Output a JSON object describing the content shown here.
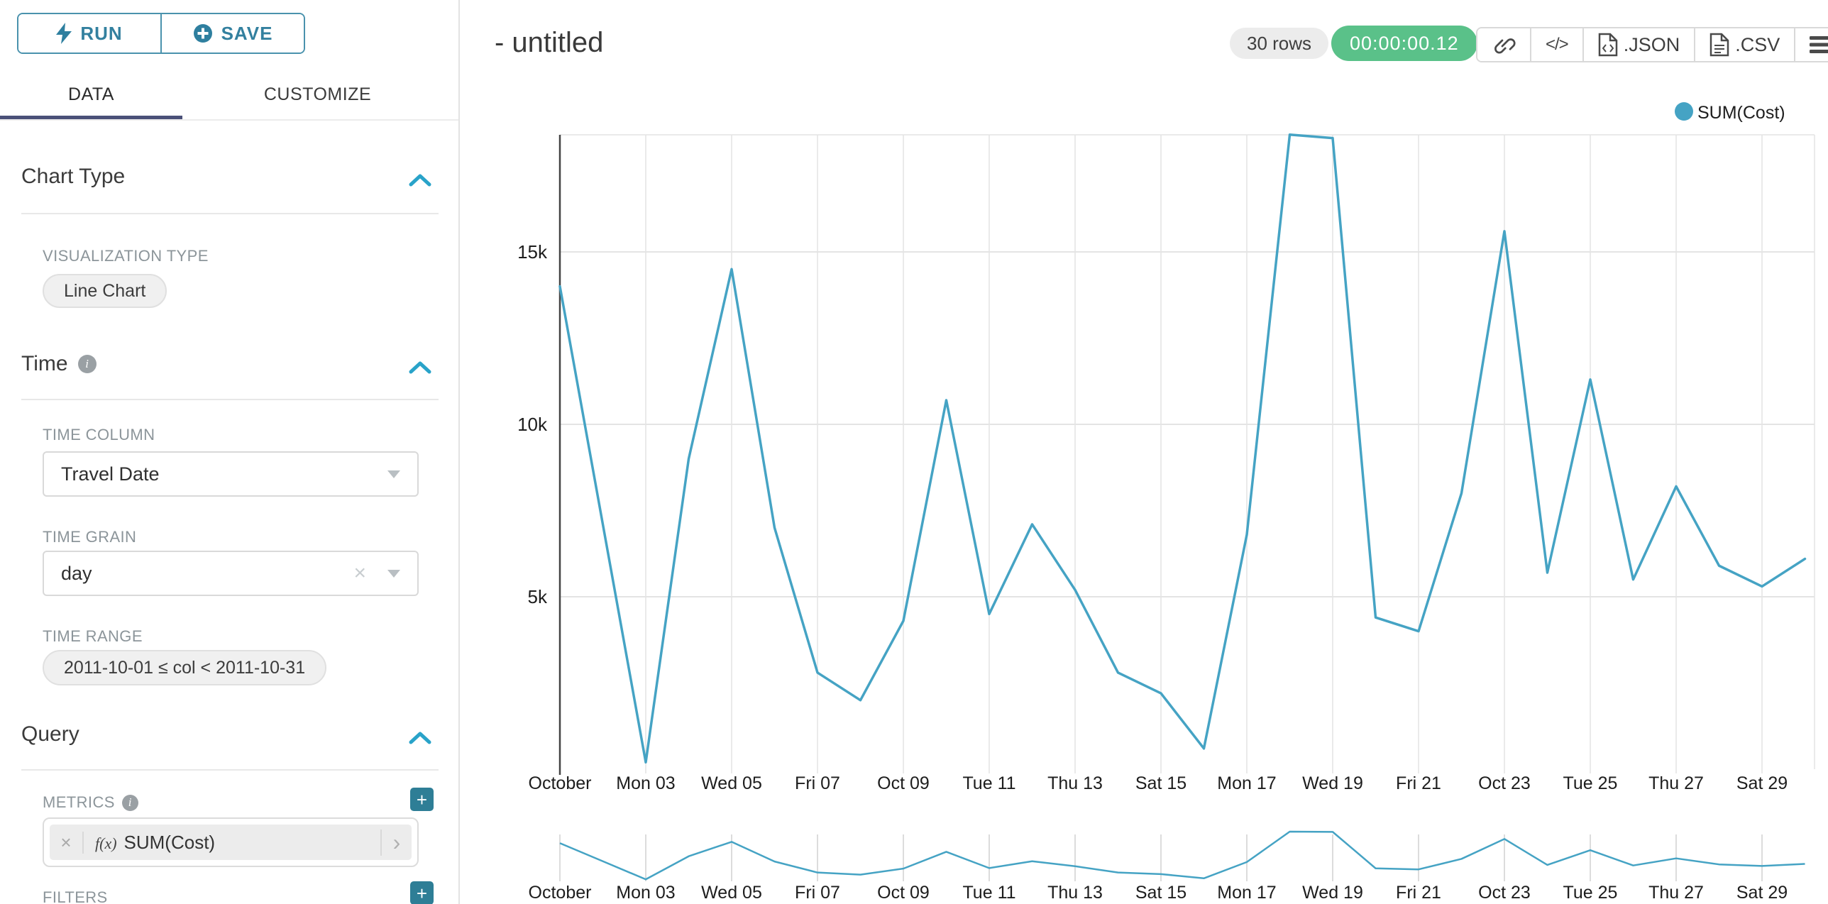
{
  "sidebar": {
    "run_label": "RUN",
    "save_label": "SAVE",
    "tabs": [
      {
        "label": "DATA",
        "active": true
      },
      {
        "label": "CUSTOMIZE",
        "active": false
      }
    ],
    "chart_type_title": "Chart Type",
    "viz_type_label": "VISUALIZATION TYPE",
    "viz_type_value": "Line Chart",
    "time_title": "Time",
    "time_column_label": "TIME COLUMN",
    "time_column_value": "Travel Date",
    "time_grain_label": "TIME GRAIN",
    "time_grain_value": "day",
    "time_range_label": "TIME RANGE",
    "time_range_value": "2011-10-01 ≤ col < 2011-10-31",
    "query_title": "Query",
    "metrics_label": "METRICS",
    "metric_fx": "f(x)",
    "metric_value": "SUM(Cost)",
    "filters_label": "FILTERS"
  },
  "header": {
    "title": "- untitled",
    "rows_badge": "30 rows",
    "timer": "00:00:00.12",
    "json_label": ".JSON",
    "csv_label": ".CSV"
  },
  "icons": {
    "code_glyph": "</>",
    "clear_glyph": "×",
    "chevron_right_glyph": "›",
    "plus_glyph": "+",
    "info_glyph": "i"
  },
  "colors": {
    "accent_teal": "#20a7c9",
    "button_teal": "#33809f",
    "timer_green": "#5ac189",
    "tab_underline_navy": "#4a5078",
    "line": "#45a3c4"
  },
  "chart_data": {
    "type": "line",
    "title": "- untitled",
    "x_dates": [
      "2011-10-01",
      "2011-10-02",
      "2011-10-03",
      "2011-10-04",
      "2011-10-05",
      "2011-10-06",
      "2011-10-07",
      "2011-10-08",
      "2011-10-09",
      "2011-10-10",
      "2011-10-11",
      "2011-10-12",
      "2011-10-13",
      "2011-10-14",
      "2011-10-15",
      "2011-10-16",
      "2011-10-17",
      "2011-10-18",
      "2011-10-19",
      "2011-10-20",
      "2011-10-21",
      "2011-10-22",
      "2011-10-23",
      "2011-10-24",
      "2011-10-25",
      "2011-10-26",
      "2011-10-27",
      "2011-10-28",
      "2011-10-29",
      "2011-10-30"
    ],
    "series": [
      {
        "name": "SUM(Cost)",
        "values": [
          14000,
          7100,
          200,
          9000,
          14500,
          7000,
          2800,
          2000,
          4300,
          10700,
          4500,
          7100,
          5200,
          2800,
          2200,
          600,
          6800,
          18400,
          18300,
          4400,
          4000,
          8000,
          15600,
          5700,
          11300,
          5500,
          8200,
          5900,
          5300,
          6100
        ]
      }
    ],
    "tick_labels": [
      "October",
      "Mon 03",
      "Wed 05",
      "Fri 07",
      "Oct 09",
      "Tue 11",
      "Thu 13",
      "Sat 15",
      "Mon 17",
      "Wed 19",
      "Fri 21",
      "Oct 23",
      "Tue 25",
      "Thu 27",
      "Sat 29"
    ],
    "tick_day_indexes": [
      0,
      2,
      4,
      6,
      8,
      10,
      12,
      14,
      16,
      18,
      20,
      22,
      24,
      26,
      28
    ],
    "ytick_labels": [
      "5k",
      "10k",
      "15k"
    ],
    "ytick_values": [
      5000,
      10000,
      15000
    ],
    "ylim": [
      0,
      18400
    ],
    "xlabel": "",
    "ylabel": "",
    "grid": true,
    "legend": {
      "label": "SUM(Cost)",
      "position": "top-right"
    },
    "has_brush_minichart": true,
    "colors": {
      "line": "#45a3c4",
      "grid": "#e4e4e4",
      "axis": "#444444",
      "label": "#1d1d1d",
      "minitick": "#dcdcdc"
    }
  }
}
